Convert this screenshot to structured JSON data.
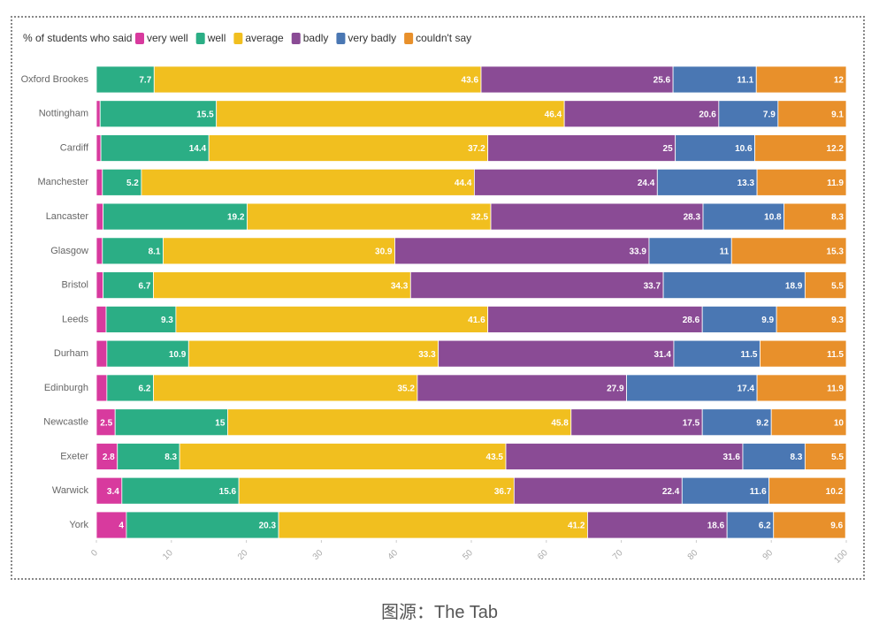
{
  "chart_data": {
    "type": "stacked-barh",
    "legend_title": "% of students who said",
    "categories": [
      "Oxford Brookes",
      "Nottingham",
      "Cardiff",
      "Manchester",
      "Lancaster",
      "Glasgow",
      "Bristol",
      "Leeds",
      "Durham",
      "Edinburgh",
      "Newcastle",
      "Exeter",
      "Warwick",
      "York"
    ],
    "series": [
      {
        "name": "very well",
        "color": "#d83a9e",
        "values": [
          0,
          0.5,
          0.6,
          0.8,
          0.9,
          0.8,
          0.9,
          1.3,
          1.4,
          1.4,
          2.5,
          2.8,
          3.4,
          4
        ],
        "value_labels": [
          null,
          null,
          null,
          null,
          null,
          null,
          null,
          null,
          null,
          null,
          "2.5",
          "2.8",
          "3.4",
          "4"
        ]
      },
      {
        "name": "well",
        "color": "#2bae85",
        "values": [
          7.7,
          15.5,
          14.4,
          5.2,
          19.2,
          8.1,
          6.7,
          9.3,
          10.9,
          6.2,
          15,
          8.3,
          15.6,
          20.3
        ]
      },
      {
        "name": "average",
        "color": "#f1bf1f",
        "values": [
          43.6,
          46.4,
          37.2,
          44.4,
          32.5,
          30.9,
          34.3,
          41.6,
          33.3,
          35.2,
          45.8,
          43.5,
          36.7,
          41.2
        ]
      },
      {
        "name": "badly",
        "color": "#8a4b95",
        "values": [
          25.6,
          20.6,
          25,
          24.4,
          28.3,
          33.9,
          33.7,
          28.6,
          31.4,
          27.9,
          17.5,
          31.6,
          22.4,
          18.6
        ]
      },
      {
        "name": "very badly",
        "color": "#4a77b3",
        "values": [
          11.1,
          7.9,
          10.6,
          13.3,
          10.8,
          11,
          18.9,
          9.9,
          11.5,
          17.4,
          9.2,
          8.3,
          11.6,
          6.2
        ]
      },
      {
        "name": "couldn't say",
        "color": "#e8902b",
        "values": [
          12,
          9.1,
          12.2,
          11.9,
          8.3,
          15.3,
          5.5,
          9.3,
          11.5,
          11.9,
          10,
          5.5,
          10.2,
          9.6
        ]
      }
    ],
    "xlim": [
      0,
      100
    ],
    "xticks": [
      0,
      10,
      20,
      30,
      40,
      50,
      60,
      70,
      80,
      90,
      100
    ]
  },
  "caption": "图源：The Tab"
}
